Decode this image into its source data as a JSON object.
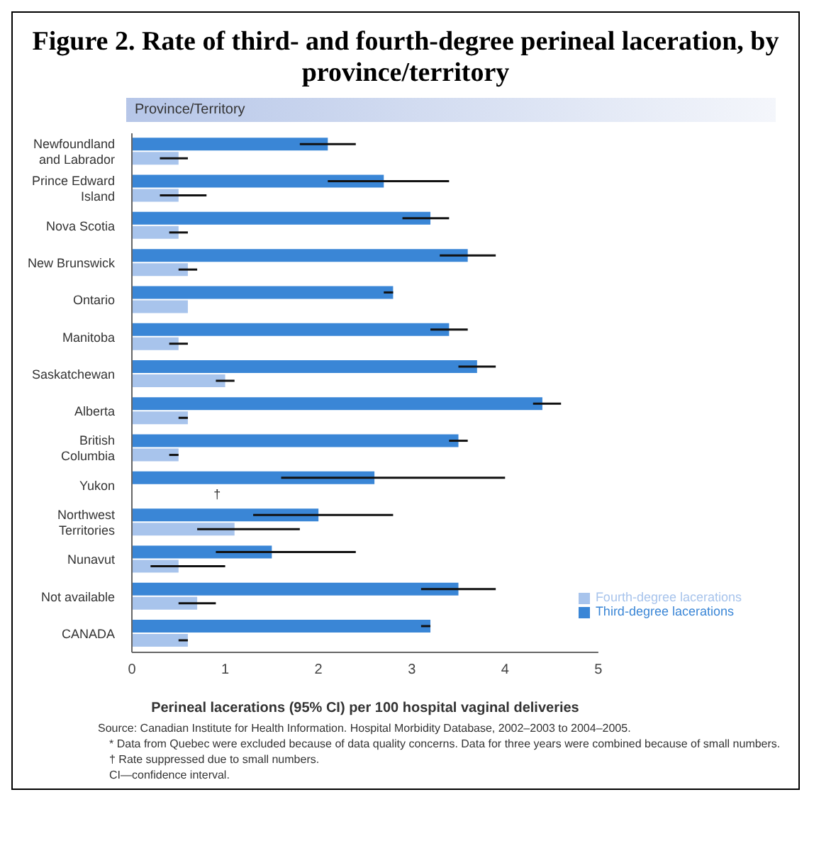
{
  "chart_data": {
    "type": "bar",
    "orientation": "horizontal",
    "title": "Figure 2. Rate of third- and fourth-degree perineal laceration, by province/territory",
    "ylabel": "Province/Territory",
    "xlabel": "Perineal lacerations (95% CI) per 100 hospital vaginal deliveries",
    "categories": [
      "Newfoundland and Labrador",
      "Prince Edward Island",
      "Nova Scotia",
      "New Brunswick",
      "Ontario",
      "Manitoba",
      "Saskatchewan",
      "Alberta",
      "British Columbia",
      "Yukon",
      "Northwest Territories",
      "Nunavut",
      "Not available",
      "CANADA"
    ],
    "series": [
      {
        "name": "Third-degree lacerations",
        "color": "#3a86d6",
        "values": [
          2.1,
          2.7,
          3.2,
          3.6,
          2.8,
          3.4,
          3.7,
          4.4,
          3.5,
          2.6,
          2.0,
          1.5,
          3.5,
          3.2
        ],
        "errors": [
          [
            1.8,
            2.4
          ],
          [
            2.1,
            3.4
          ],
          [
            2.9,
            3.4
          ],
          [
            3.3,
            3.9
          ],
          [
            2.7,
            2.8
          ],
          [
            3.2,
            3.6
          ],
          [
            3.5,
            3.9
          ],
          [
            4.3,
            4.6
          ],
          [
            3.4,
            3.6
          ],
          [
            1.6,
            4.0
          ],
          [
            1.3,
            2.8
          ],
          [
            0.9,
            2.4
          ],
          [
            3.1,
            3.9
          ],
          [
            3.1,
            3.2
          ]
        ]
      },
      {
        "name": "Fourth-degree lacerations",
        "color": "#a8c4ec",
        "values": [
          0.5,
          0.5,
          0.5,
          0.6,
          0.6,
          0.5,
          1.0,
          0.6,
          0.5,
          null,
          1.1,
          0.5,
          0.7,
          0.6
        ],
        "errors": [
          [
            0.3,
            0.6
          ],
          [
            0.3,
            0.8
          ],
          [
            0.4,
            0.6
          ],
          [
            0.5,
            0.7
          ],
          null,
          [
            0.4,
            0.6
          ],
          [
            0.9,
            1.1
          ],
          [
            0.5,
            0.6
          ],
          [
            0.4,
            0.5
          ],
          null,
          [
            0.7,
            1.8
          ],
          [
            0.2,
            1.0
          ],
          [
            0.5,
            0.9
          ],
          [
            0.5,
            0.6
          ]
        ]
      }
    ],
    "xlim": [
      0,
      5
    ],
    "xticks": [
      0,
      1,
      2,
      3,
      4,
      5
    ],
    "legend": "right",
    "grid": false,
    "annotations": [
      {
        "text": "†",
        "x": 0.8,
        "y": "Yukon"
      },
      "Source: Canadian Institute for Health Information. Hospital Morbidity Database, 2002–2003 to 2004–2005.",
      "* Data from Quebec were excluded because of data quality concerns. Data for three years were combined because of small numbers.",
      "† Rate suppressed due to small numbers.",
      "CI—confidence interval."
    ]
  }
}
